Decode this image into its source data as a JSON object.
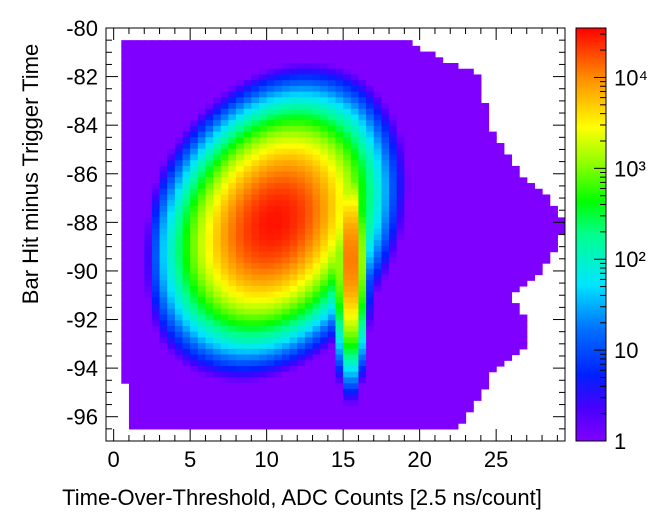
{
  "chart_data": {
    "type": "heatmap",
    "title": "",
    "xlabel": "Time-Over-Threshold, ADC Counts [2.5 ns/count]",
    "ylabel": "Bar Hit minus Trigger Time",
    "xlim": [
      -0.5,
      29.5
    ],
    "ylim": [
      -97,
      -80
    ],
    "x_ticks": [
      0,
      5,
      10,
      15,
      20,
      25
    ],
    "x_tick_labels": [
      "0",
      "5",
      "10",
      "15",
      "20",
      "25"
    ],
    "y_ticks": [
      -80,
      -82,
      -84,
      -86,
      -88,
      -90,
      -92,
      -94,
      -96
    ],
    "y_tick_labels": [
      "-80",
      "-82",
      "-84",
      "-86",
      "-88",
      "-90",
      "-92",
      "-94",
      "-96"
    ],
    "z_scale": "log",
    "zlim": [
      1,
      35000
    ],
    "colorbar_ticks": [
      1,
      10,
      100,
      1000,
      10000
    ],
    "colorbar_tick_labels": [
      "1",
      "10",
      "10²",
      "10³",
      "10⁴"
    ],
    "peak": {
      "x": 10.5,
      "y": -88,
      "z": 30000
    },
    "secondary_peak": {
      "x": 15.5,
      "y": -89.5,
      "z": 15000
    },
    "fill_extent_x_by_row": {
      "y": [
        -80.5,
        -82,
        -84,
        -86,
        -87,
        -88,
        -89,
        -90,
        -91,
        -92,
        -93,
        -94,
        -95,
        -96,
        -96.5
      ],
      "x_min": [
        0.5,
        0.5,
        0.5,
        0.5,
        0.5,
        0.5,
        0.5,
        0.5,
        0.5,
        0.5,
        0.5,
        0.5,
        1.0,
        1.0,
        1.0
      ],
      "x_max": [
        19.0,
        24.0,
        24.5,
        26.5,
        28.5,
        29.5,
        29.0,
        28.0,
        26.0,
        27.0,
        27.0,
        25.0,
        24.0,
        23.0,
        22.5
      ]
    }
  }
}
